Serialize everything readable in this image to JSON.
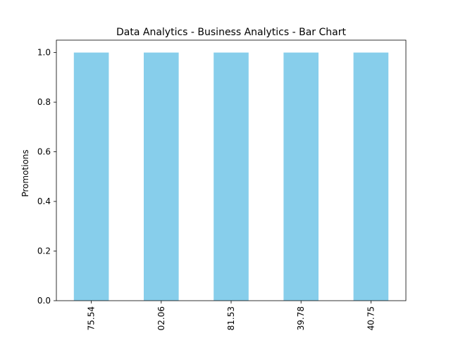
{
  "chart_data": {
    "type": "bar",
    "title": "Data Analytics - Business Analytics - Bar Chart",
    "xlabel": "",
    "ylabel": "Promotions",
    "categories": [
      "75.54",
      "02.06",
      "81.53",
      "39.78",
      "40.75"
    ],
    "values": [
      1.0,
      1.0,
      1.0,
      1.0,
      1.0
    ],
    "ylim": [
      0,
      1.05
    ],
    "yticks": [
      "0.0",
      "0.2",
      "0.4",
      "0.6",
      "0.8",
      "1.0"
    ],
    "bar_color": "#87CEEB",
    "grid": false,
    "legend": "none"
  }
}
